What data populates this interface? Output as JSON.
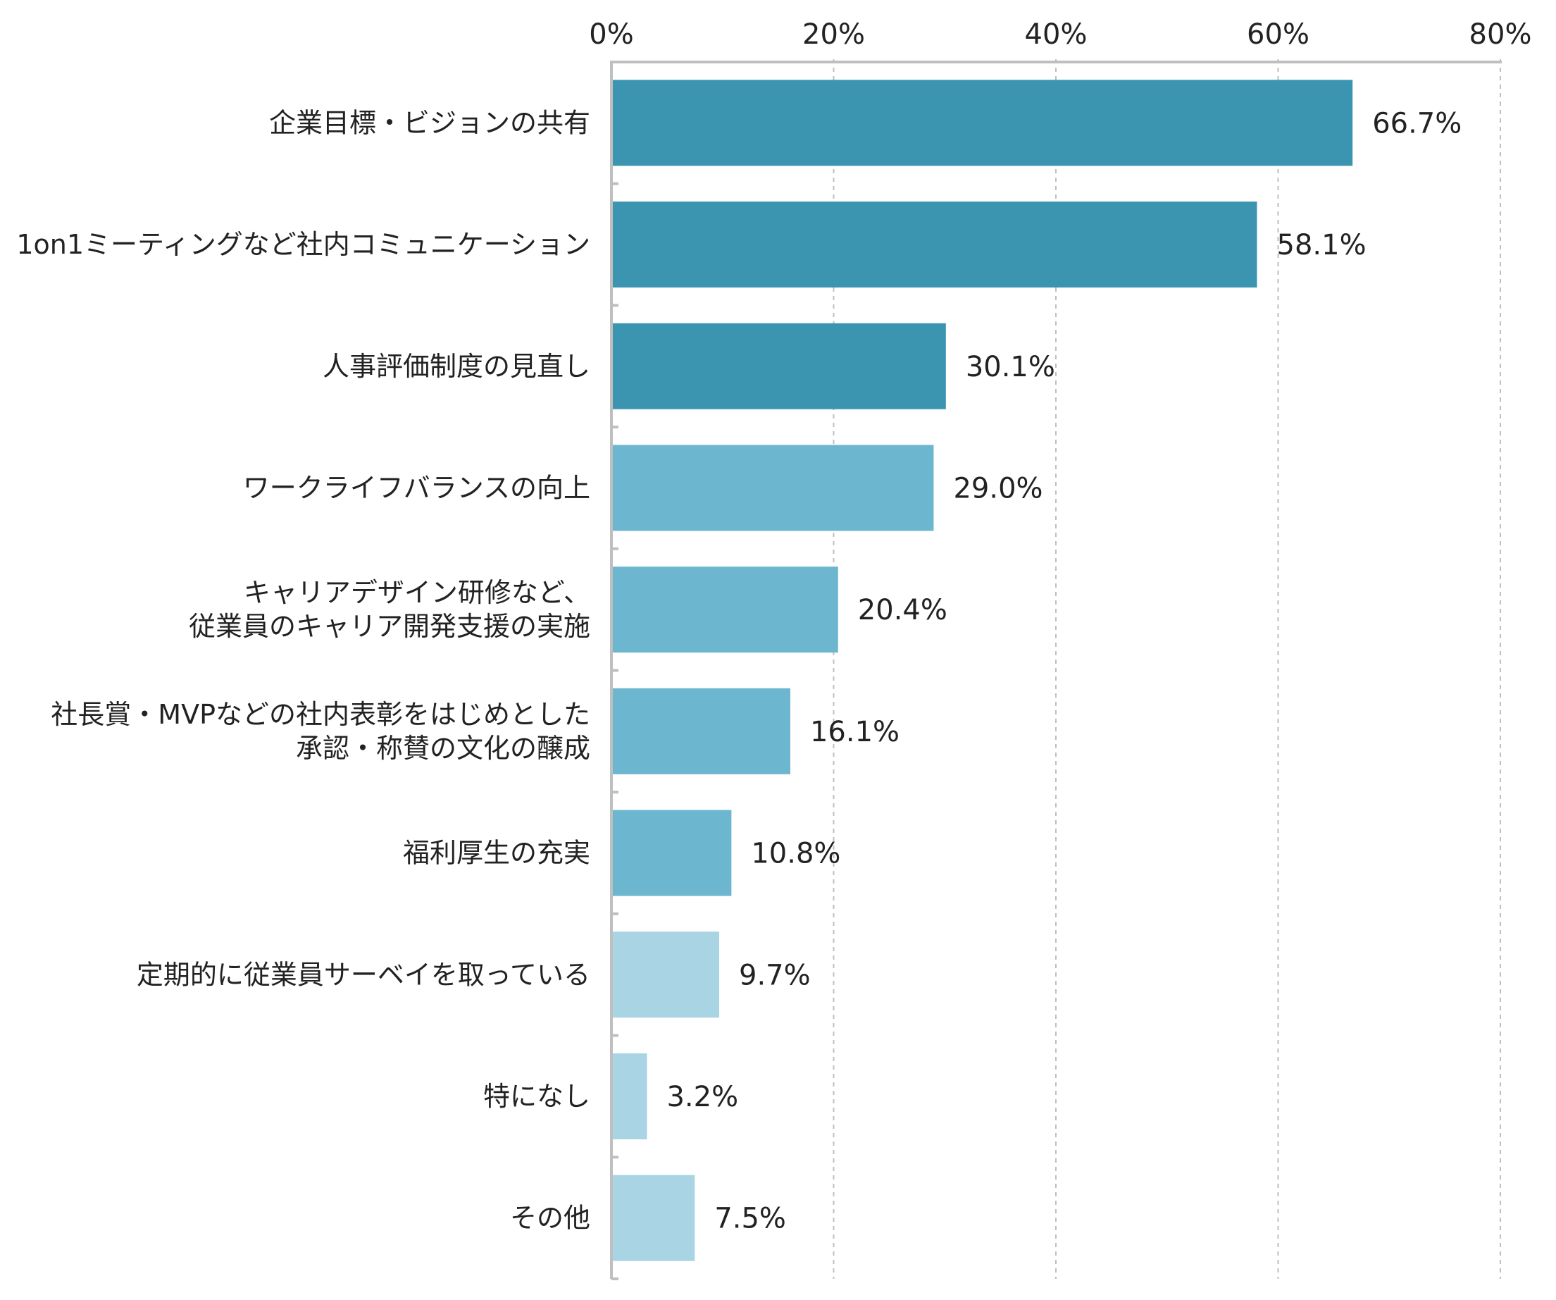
{
  "chart_data": {
    "type": "bar",
    "orientation": "horizontal",
    "xlim": [
      0,
      80
    ],
    "x_ticks": [
      "0%",
      "20%",
      "40%",
      "60%",
      "80%"
    ],
    "tick_values": [
      0,
      20,
      40,
      60,
      80
    ],
    "grid": true,
    "legend": "none",
    "categories": [
      [
        "企業目標・ビジョンの共有"
      ],
      [
        "1on1ミーティングなど社内コミュニケーション"
      ],
      [
        "人事評価制度の見直し"
      ],
      [
        "ワークライフバランスの向上"
      ],
      [
        "キャリアデザイン研修など、",
        "従業員のキャリア開発支援の実施"
      ],
      [
        "社長賞・MVPなどの社内表彰をはじめとした",
        "承認・称賛の文化の醸成"
      ],
      [
        "福利厚生の充実"
      ],
      [
        "定期的に従業員サーベイを取っている"
      ],
      [
        "特になし"
      ],
      [
        "その他"
      ]
    ],
    "values": [
      66.7,
      58.1,
      30.1,
      29.0,
      20.4,
      16.1,
      10.8,
      9.7,
      3.2,
      7.5
    ],
    "data_labels": [
      "66.7%",
      "58.1%",
      "30.1%",
      "29.0%",
      "20.4%",
      "16.1%",
      "10.8%",
      "9.7%",
      "3.2%",
      "7.5%"
    ],
    "bar_colors": [
      "#3b95b1",
      "#3b95b1",
      "#3b95b1",
      "#6db6cf",
      "#6db6cf",
      "#6db6cf",
      "#6db6cf",
      "#a8d4e3",
      "#a8d4e3",
      "#a8d4e3"
    ],
    "axis_color": "#bfbfbf"
  }
}
